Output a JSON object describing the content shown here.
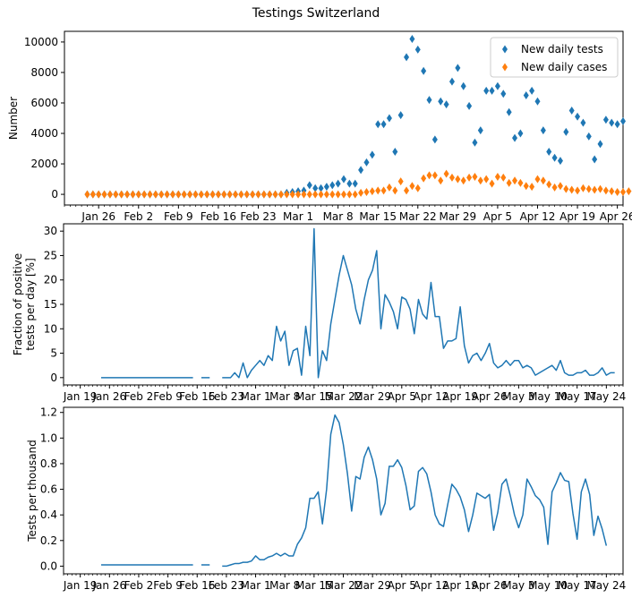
{
  "figure": {
    "title": "Testings Switzerland"
  },
  "colors": {
    "tests": "#1f77b4",
    "cases": "#ff7f0e",
    "line": "#1f77b4",
    "axis": "#000000"
  },
  "chart_data": [
    {
      "type": "scatter",
      "ylabel": "Number",
      "xlabel": "",
      "ylim": [
        -700,
        10700
      ],
      "yticks": [
        0,
        2000,
        4000,
        6000,
        8000,
        10000
      ],
      "x_start": "2020-01-20",
      "x_end": "2020-04-27",
      "xtick_labels": [
        "Jan 26",
        "Feb 2",
        "Feb 9",
        "Feb 16",
        "Feb 23",
        "Mar 1",
        "Mar 8",
        "Mar 15",
        "Mar 22",
        "Mar 29",
        "Apr 5",
        "Apr 12",
        "Apr 19",
        "Apr 26"
      ],
      "legend": {
        "placement": "top-right",
        "entries": [
          "New daily tests",
          "New daily cases"
        ]
      },
      "series_start": "2020-01-24",
      "series": [
        {
          "name": "New daily tests",
          "marker": "diamond",
          "values": [
            0,
            0,
            0,
            0,
            0,
            0,
            0,
            0,
            0,
            0,
            0,
            0,
            0,
            0,
            0,
            0,
            0,
            0,
            0,
            0,
            0,
            0,
            0,
            0,
            0,
            0,
            0,
            0,
            0,
            0,
            0,
            0,
            0,
            0,
            0,
            100,
            150,
            200,
            250,
            600,
            400,
            400,
            500,
            600,
            700,
            1000,
            700,
            700,
            1600,
            2100,
            2600,
            4600,
            4600,
            5000,
            2800,
            5200,
            9000,
            10200,
            9500,
            8100,
            6200,
            3600,
            6100,
            5900,
            7400,
            8300,
            7100,
            5800,
            3400,
            4200,
            6800,
            6800,
            7100,
            6600,
            5400,
            3700,
            4000,
            6500,
            6800,
            6100,
            4200,
            2800,
            2400,
            2200,
            4100,
            5500,
            5100,
            4700,
            3800,
            2300,
            3300,
            4900,
            4700,
            4600,
            4800
          ]
        },
        {
          "name": "New daily cases",
          "marker": "diamond",
          "values": [
            0,
            0,
            0,
            0,
            0,
            0,
            0,
            0,
            0,
            0,
            0,
            0,
            0,
            0,
            0,
            0,
            0,
            0,
            0,
            0,
            0,
            0,
            0,
            0,
            0,
            0,
            0,
            0,
            0,
            0,
            0,
            0,
            0,
            0,
            0,
            0,
            0,
            0,
            0,
            0,
            0,
            0,
            0,
            0,
            0,
            0,
            0,
            0,
            100,
            150,
            200,
            250,
            250,
            450,
            250,
            850,
            250,
            550,
            400,
            1050,
            1250,
            1250,
            900,
            1350,
            1100,
            1000,
            900,
            1100,
            1150,
            900,
            1000,
            700,
            1150,
            1100,
            750,
            900,
            750,
            550,
            500,
            1000,
            900,
            650,
            450,
            550,
            350,
            300,
            250,
            400,
            350,
            300,
            350,
            250,
            200,
            150,
            150,
            200,
            200
          ]
        }
      ]
    },
    {
      "type": "line",
      "ylabel": "Fraction of positive tests per day [%]",
      "xlabel": "",
      "ylim": [
        -1.5,
        31.5
      ],
      "yticks": [
        0,
        5,
        10,
        15,
        20,
        25,
        30
      ],
      "x_start": "2020-01-15",
      "x_end": "2020-05-28",
      "xtick_labels": [
        "Jan 19",
        "Jan 26",
        "Feb 2",
        "Feb 9",
        "Feb 16",
        "Feb 23",
        "Mar 1",
        "Mar 8",
        "Mar 15",
        "Mar 22",
        "Mar 29",
        "Apr 5",
        "Apr 12",
        "Apr 19",
        "Apr 26",
        "May 3",
        "May 10",
        "May 17",
        "May 24"
      ],
      "series_start": "2020-01-24",
      "series": [
        {
          "name": "",
          "values": [
            0,
            0,
            0,
            0,
            0,
            0,
            0,
            0,
            0,
            0,
            0,
            0,
            0,
            0,
            0,
            0,
            0,
            0,
            0,
            0,
            0,
            0,
            0,
            null,
            0,
            0,
            0,
            null,
            null,
            0,
            0,
            0,
            1,
            0,
            3,
            0,
            1.5,
            2.5,
            3.5,
            2.5,
            4.5,
            3.5,
            10.5,
            7.5,
            9.5,
            2.5,
            5.5,
            6,
            0.5,
            10.5,
            4.5,
            30.5,
            0,
            5.5,
            3.5,
            11,
            16,
            21,
            25,
            22,
            19,
            14,
            11,
            16,
            20,
            22,
            26,
            10,
            17,
            15.5,
            13.5,
            10,
            16.5,
            16,
            14,
            9,
            16,
            13,
            12,
            19.5,
            12.5,
            12.5,
            6,
            7.5,
            7.5,
            8,
            14.5,
            6.5,
            3,
            4.5,
            5,
            3.5,
            5,
            7,
            3,
            2,
            2.5,
            3.5,
            2.5,
            3.5,
            3.5,
            2,
            2.5,
            2,
            0.5,
            1,
            1.5,
            2,
            2.5,
            1.5,
            3.5,
            1,
            0.5,
            0.5,
            1,
            1,
            1.5,
            0.5,
            0.5,
            1,
            2,
            0.5,
            1,
            1
          ]
        }
      ]
    },
    {
      "type": "line",
      "ylabel": "Tests per thousand",
      "xlabel": "",
      "ylim": [
        -0.06,
        1.24
      ],
      "yticks": [
        0.0,
        0.2,
        0.4,
        0.6,
        0.8,
        1.0,
        1.2
      ],
      "x_start": "2020-01-15",
      "x_end": "2020-05-28",
      "xtick_labels": [
        "Jan 19",
        "Jan 26",
        "Feb 2",
        "Feb 9",
        "Feb 16",
        "Feb 23",
        "Mar 1",
        "Mar 8",
        "Mar 15",
        "Mar 22",
        "Mar 29",
        "Apr 5",
        "Apr 12",
        "Apr 19",
        "Apr 26",
        "May 3",
        "May 10",
        "May 17",
        "May 24"
      ],
      "series_start": "2020-01-24",
      "series": [
        {
          "name": "",
          "values": [
            0.01,
            0.01,
            0.01,
            0.01,
            0.01,
            0.01,
            0.01,
            0.01,
            0.01,
            0.01,
            0.01,
            0.01,
            0.01,
            0.01,
            0.01,
            0.01,
            0.01,
            0.01,
            0.01,
            0.01,
            0.01,
            0.01,
            0.01,
            null,
            0.01,
            0.01,
            0.01,
            null,
            null,
            0,
            0,
            0.01,
            0.02,
            0.02,
            0.03,
            0.03,
            0.04,
            0.08,
            0.05,
            0.05,
            0.07,
            0.08,
            0.1,
            0.08,
            0.1,
            0.08,
            0.08,
            0.17,
            0.22,
            0.3,
            0.53,
            0.53,
            0.58,
            0.33,
            0.6,
            1.03,
            1.18,
            1.12,
            0.95,
            0.72,
            0.43,
            0.7,
            0.68,
            0.85,
            0.93,
            0.83,
            0.68,
            0.4,
            0.49,
            0.78,
            0.78,
            0.83,
            0.77,
            0.63,
            0.44,
            0.47,
            0.74,
            0.77,
            0.72,
            0.58,
            0.4,
            0.33,
            0.31,
            0.48,
            0.64,
            0.6,
            0.54,
            0.44,
            0.27,
            0.4,
            0.57,
            0.55,
            0.53,
            0.56,
            0.28,
            0.42,
            0.64,
            0.68,
            0.55,
            0.4,
            0.3,
            0.4,
            0.68,
            0.62,
            0.55,
            0.52,
            0.46,
            0.17,
            0.58,
            0.65,
            0.73,
            0.67,
            0.66,
            0.41,
            0.21,
            0.58,
            0.68,
            0.56,
            0.24,
            0.39,
            0.29,
            0.16
          ]
        }
      ]
    }
  ]
}
